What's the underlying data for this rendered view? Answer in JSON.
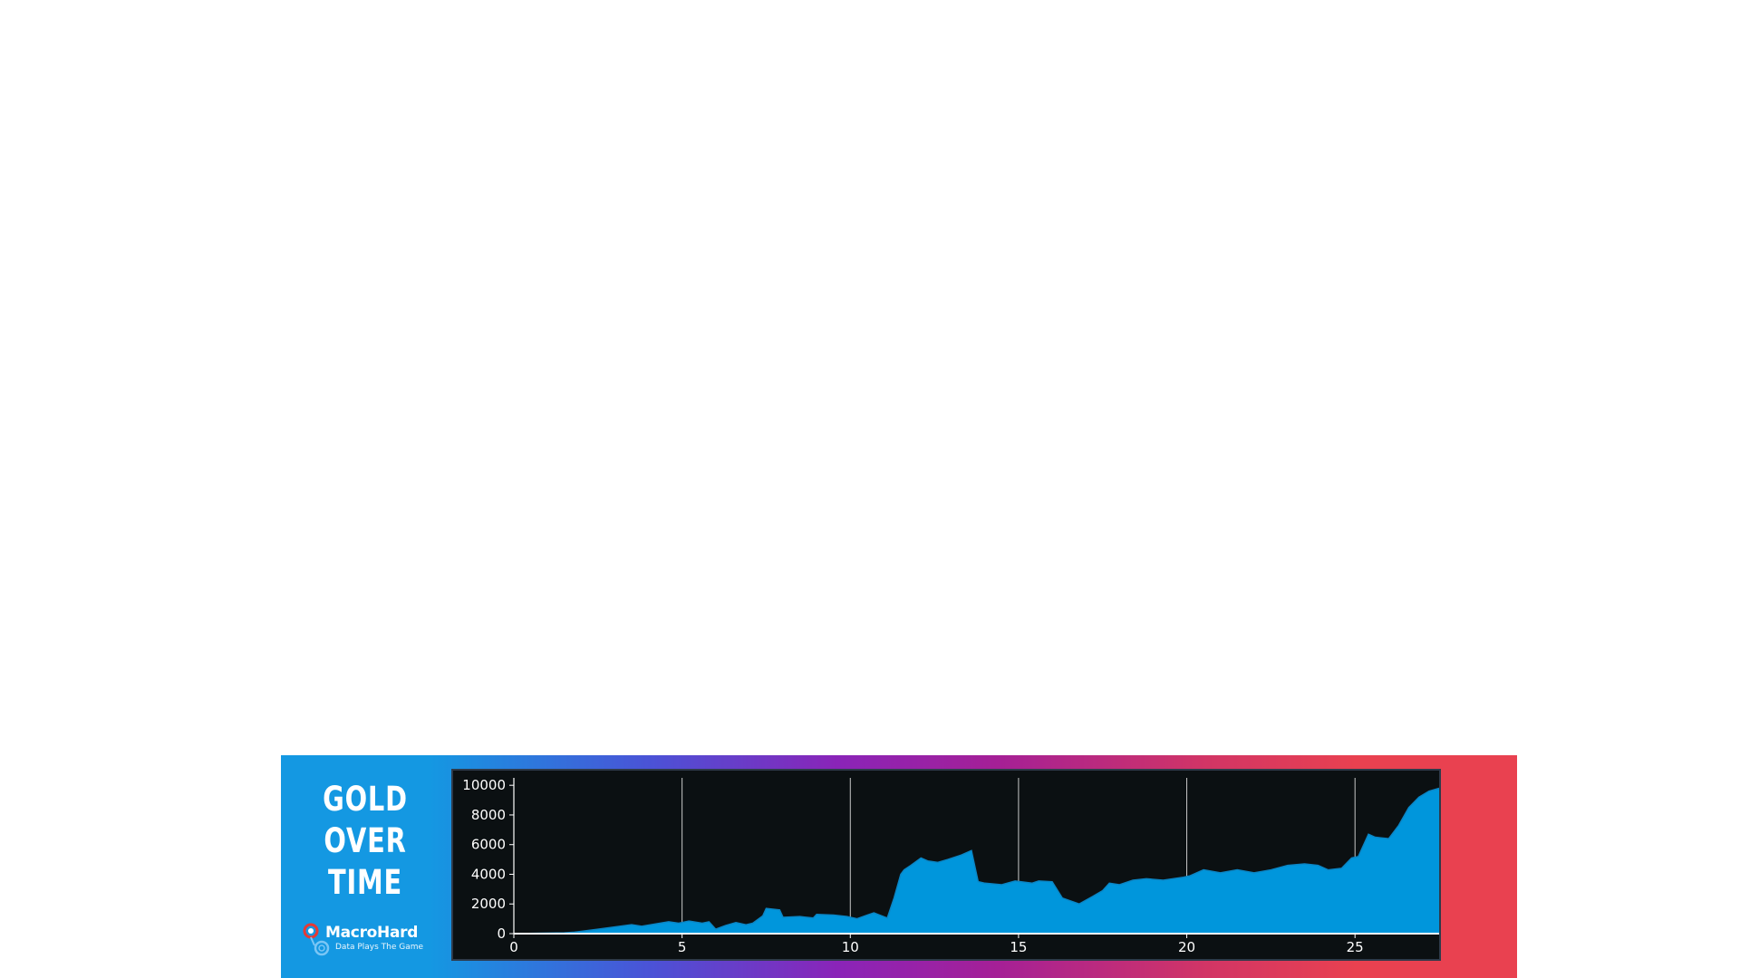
{
  "banner": {
    "title_lines": [
      "GOLD",
      "OVER",
      "TIME"
    ],
    "logo": {
      "name": "MacroHard",
      "tagline": "Data Plays The Game",
      "icon": "macrohard-logo-icon"
    },
    "colors": {
      "gradient_start": "#1498e2",
      "gradient_mid": "#8a24b8",
      "gradient_end": "#e94150",
      "chart_background": "#0b1012",
      "area_fill": "#0096dc"
    }
  },
  "chart_data": {
    "type": "area",
    "title": "",
    "xlabel": "",
    "ylabel": "",
    "xlim": [
      0,
      27.5
    ],
    "ylim": [
      0,
      10500
    ],
    "x_ticks": [
      "0",
      "5",
      "10",
      "15",
      "20",
      "25"
    ],
    "y_ticks": [
      "0",
      "2000",
      "4000",
      "6000",
      "8000",
      "10000"
    ],
    "grid": "vertical",
    "legend": "none",
    "series": [
      {
        "x": [
          0,
          1.5,
          1.8,
          2.0,
          2.5,
          3.0,
          3.5,
          3.8,
          4.2,
          4.6,
          4.9,
          5.2,
          5.6,
          5.8,
          6.0,
          6.3,
          6.6,
          6.9,
          7.1,
          7.4,
          7.5,
          7.9,
          8.0,
          8.5,
          8.9,
          9.0,
          9.5,
          9.9,
          10.2,
          10.5,
          10.7,
          11.1,
          11.3,
          11.5,
          11.6,
          11.8,
          12.1,
          12.3,
          12.6,
          12.9,
          13.3,
          13.6,
          13.8,
          14.0,
          14.5,
          14.9,
          15.4,
          15.6,
          16.0,
          16.3,
          16.8,
          17.2,
          17.5,
          17.7,
          18.0,
          18.4,
          18.8,
          19.3,
          19.9,
          20.1,
          20.5,
          21.0,
          21.5,
          22.0,
          22.5,
          23.0,
          23.5,
          23.9,
          24.2,
          24.6,
          24.9,
          25.1,
          25.4,
          25.6,
          26.0,
          26.3,
          26.6,
          26.9,
          27.2,
          27.5
        ],
        "y": [
          0,
          50,
          100,
          150,
          300,
          450,
          600,
          500,
          650,
          800,
          700,
          850,
          700,
          800,
          300,
          550,
          750,
          600,
          700,
          1200,
          1700,
          1600,
          1100,
          1150,
          1050,
          1300,
          1250,
          1150,
          1000,
          1250,
          1400,
          1050,
          2400,
          4000,
          4300,
          4600,
          5100,
          4900,
          4800,
          5000,
          5300,
          5600,
          3500,
          3400,
          3300,
          3550,
          3400,
          3550,
          3500,
          2400,
          2000,
          2500,
          2900,
          3400,
          3300,
          3600,
          3700,
          3600,
          3800,
          3900,
          4300,
          4100,
          4300,
          4100,
          4300,
          4600,
          4700,
          4600,
          4300,
          4400,
          5100,
          5200,
          6700,
          6500,
          6400,
          7300,
          8500,
          9200,
          9600,
          9800
        ]
      }
    ]
  }
}
